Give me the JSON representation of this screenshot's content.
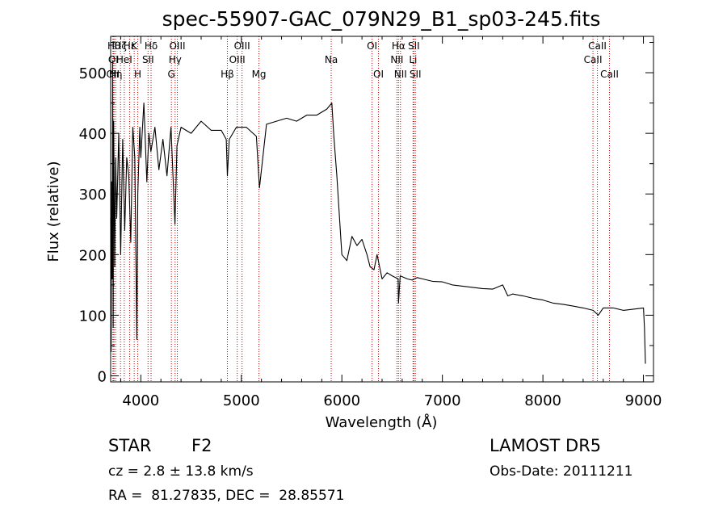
{
  "chart_data": {
    "type": "line",
    "title": "spec-55907-GAC_079N29_B1_sp03-245.fits",
    "xlabel": "Wavelength (Å)",
    "ylabel": "Flux (relative)",
    "xlim": [
      3700,
      9100
    ],
    "ylim": [
      -10,
      560
    ],
    "xticks": [
      "4000",
      "5000",
      "6000",
      "7000",
      "8000",
      "9000"
    ],
    "xtick_values": [
      4000,
      5000,
      6000,
      7000,
      8000,
      9000
    ],
    "yticks": [
      "0",
      "100",
      "200",
      "300",
      "400",
      "500"
    ],
    "ytick_values": [
      0,
      100,
      200,
      300,
      400,
      500
    ],
    "grid": false,
    "line_color": "#000000",
    "marker_color": "#cc0000",
    "series": [
      {
        "x": [
          3700,
          3705,
          3710,
          3715,
          3720,
          3725,
          3730,
          3740,
          3750,
          3760,
          3780,
          3800,
          3820,
          3840,
          3860,
          3880,
          3900,
          3920,
          3940,
          3960,
          3970,
          3990,
          4000,
          4030,
          4060,
          4080,
          4100,
          4140,
          4180,
          4220,
          4260,
          4300,
          4340,
          4360,
          4400,
          4500,
          4600,
          4700,
          4800,
          4850,
          4861,
          4880,
          4950,
          5050,
          5150,
          5180,
          5250,
          5350,
          5450,
          5550,
          5650,
          5750,
          5850,
          5900,
          5920,
          5950,
          6000,
          6050,
          6100,
          6150,
          6200,
          6250,
          6280,
          6320,
          6350,
          6400,
          6450,
          6500,
          6560,
          6563,
          6580,
          6650,
          6700,
          6750,
          6800,
          6900,
          7000,
          7100,
          7200,
          7300,
          7400,
          7500,
          7600,
          7650,
          7700,
          7800,
          7900,
          8000,
          8100,
          8200,
          8300,
          8400,
          8500,
          8550,
          8600,
          8700,
          8800,
          8900,
          9000,
          9010,
          9020
        ],
        "y": [
          260,
          40,
          320,
          160,
          520,
          80,
          420,
          180,
          360,
          260,
          400,
          200,
          390,
          240,
          360,
          330,
          220,
          410,
          360,
          60,
          300,
          410,
          360,
          450,
          320,
          400,
          370,
          410,
          340,
          390,
          330,
          410,
          250,
          380,
          410,
          400,
          420,
          405,
          405,
          390,
          330,
          390,
          410,
          410,
          395,
          310,
          415,
          420,
          425,
          420,
          430,
          430,
          440,
          450,
          395,
          330,
          200,
          190,
          230,
          215,
          225,
          200,
          180,
          175,
          200,
          160,
          170,
          165,
          160,
          120,
          165,
          160,
          158,
          162,
          160,
          156,
          155,
          150,
          148,
          146,
          144,
          143,
          150,
          132,
          135,
          132,
          128,
          125,
          120,
          118,
          115,
          112,
          108,
          100,
          112,
          112,
          108,
          110,
          112,
          80,
          20
        ]
      }
    ],
    "line_markers": [
      {
        "wavelength": 3722,
        "label": "OII",
        "row": 3
      },
      {
        "wavelength": 3727,
        "label": "OI",
        "row": 2
      },
      {
        "wavelength": 3734,
        "label": "Hθ",
        "row": 1
      },
      {
        "wavelength": 3750,
        "label": "Hη",
        "row": 3
      },
      {
        "wavelength": 3798,
        "label": "Hζ",
        "row": 1
      },
      {
        "wavelength": 3835,
        "label": "HeI",
        "row": 2
      },
      {
        "wavelength": 3889,
        "label": "Hε",
        "row": 1
      },
      {
        "wavelength": 3934,
        "label": "K",
        "row": 1
      },
      {
        "wavelength": 3969,
        "label": "H",
        "row": 3
      },
      {
        "wavelength": 4072,
        "label": "SII",
        "row": 2
      },
      {
        "wavelength": 4102,
        "label": "Hδ",
        "row": 1
      },
      {
        "wavelength": 4304,
        "label": "G",
        "row": 3
      },
      {
        "wavelength": 4341,
        "label": "Hγ",
        "row": 2
      },
      {
        "wavelength": 4363,
        "label": "OIII",
        "row": 1
      },
      {
        "wavelength": 4861,
        "label": "Hβ",
        "row": 3
      },
      {
        "wavelength": 4959,
        "label": "OIII",
        "row": 2
      },
      {
        "wavelength": 5007,
        "label": "OIII",
        "row": 1
      },
      {
        "wavelength": 5175,
        "label": "Mg",
        "row": 3
      },
      {
        "wavelength": 5894,
        "label": "Na",
        "row": 2
      },
      {
        "wavelength": 6300,
        "label": "OI",
        "row": 1
      },
      {
        "wavelength": 6364,
        "label": "OI",
        "row": 3
      },
      {
        "wavelength": 6548,
        "label": "NII",
        "row": 2
      },
      {
        "wavelength": 6563,
        "label": "Hα",
        "row": 1
      },
      {
        "wavelength": 6583,
        "label": "NII",
        "row": 3
      },
      {
        "wavelength": 6708,
        "label": "Li",
        "row": 2
      },
      {
        "wavelength": 6716,
        "label": "SII",
        "row": 1
      },
      {
        "wavelength": 6731,
        "label": "SII",
        "row": 3
      },
      {
        "wavelength": 8498,
        "label": "CaII",
        "row": 2
      },
      {
        "wavelength": 8542,
        "label": "CaII",
        "row": 1
      },
      {
        "wavelength": 8662,
        "label": "CaII",
        "row": 3
      }
    ]
  },
  "info": {
    "class_type": "STAR",
    "subclass": "F2",
    "survey": "LAMOST DR5",
    "cz": "cz = 2.8 ± 13.8 km/s",
    "obs_date": "Obs-Date: 20111211",
    "coords": "RA =  81.27835, DEC =  28.85571"
  }
}
